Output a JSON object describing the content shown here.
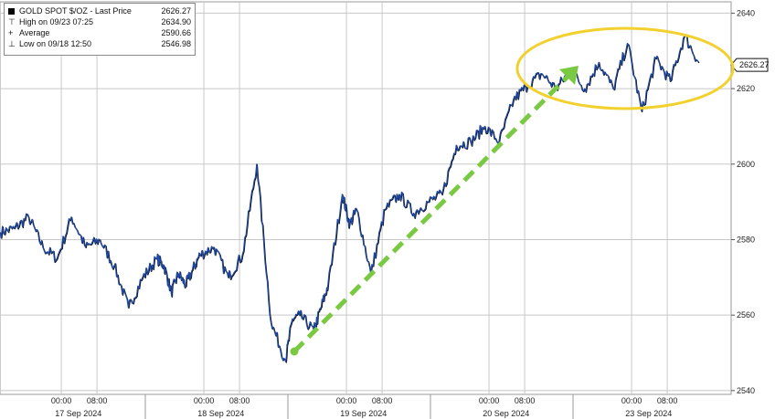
{
  "legend": {
    "title": "GOLD SPOT $/OZ - Last Price",
    "last_value": "2626.27",
    "high_label": "High on 09/23 07:25",
    "high_value": "2634.90",
    "avg_label": "Average",
    "avg_value": "2590.66",
    "low_label": "Low on 09/18 12:50",
    "low_value": "2546.98",
    "icons": {
      "last": "filled-square-icon",
      "high": "high-marker-icon",
      "avg": "average-marker-icon",
      "low": "low-marker-icon"
    }
  },
  "chart_data": {
    "type": "line",
    "series": [
      {
        "name": "GOLD SPOT $/OZ - Last Price",
        "x": [
          0.0,
          0.1,
          0.2,
          0.3,
          0.4,
          0.5,
          0.6,
          0.7,
          0.8,
          0.9,
          1.0,
          1.1,
          1.15,
          1.2,
          1.25,
          1.3,
          1.35,
          1.4,
          1.5,
          1.6,
          1.7,
          1.8,
          1.9,
          2.0,
          2.05,
          2.1,
          2.2,
          2.25,
          2.3,
          2.4,
          2.45,
          2.5,
          2.6,
          2.7,
          2.8,
          2.9,
          3.0,
          3.1,
          3.2,
          3.3,
          3.4,
          3.5,
          3.6,
          3.7,
          3.8,
          3.9,
          4.0,
          4.1,
          4.2,
          4.3,
          4.4,
          4.5,
          4.6,
          4.7,
          4.8,
          4.9
        ],
        "y": [
          2582,
          2583,
          2586,
          2578,
          2575,
          2586,
          2578,
          2580,
          2573,
          2562,
          2570,
          2575,
          2573,
          2566,
          2571,
          2568,
          2572,
          2576,
          2578,
          2570,
          2576,
          2600,
          2558,
          2548,
          2559,
          2560,
          2556,
          2562,
          2568,
          2592,
          2584,
          2588,
          2571,
          2588,
          2592,
          2587,
          2590,
          2592,
          2605,
          2606,
          2610,
          2606,
          2617,
          2621,
          2624,
          2620,
          2625,
          2620,
          2627,
          2620,
          2632,
          2614,
          2628,
          2622,
          2634,
          2627
        ]
      }
    ],
    "last_value": 2626.27,
    "y_ticks": [
      2540,
      2560,
      2580,
      2600,
      2620,
      2640
    ],
    "ylim": [
      2539,
      2643
    ],
    "x_tick_labels": [
      "00:00",
      "08:00",
      "00:00",
      "08:00",
      "00:00",
      "08:00",
      "00:00",
      "08:00",
      "00:00",
      "08:00"
    ],
    "date_labels": [
      "17 Sep 2024",
      "18 Sep 2024",
      "19 Sep 2024",
      "20 Sep 2024",
      "23 Sep 2024"
    ],
    "grid": true,
    "legend_position": "top-left",
    "colors": {
      "line": "#1f4aa8",
      "arrow": "#7ac943",
      "ellipse": "#f2d12e",
      "grid": "#c8c8c8"
    },
    "annotations": {
      "arrow": "green dashed upward trend arrow",
      "ellipse": "yellow oval highlighting recent highs"
    }
  }
}
